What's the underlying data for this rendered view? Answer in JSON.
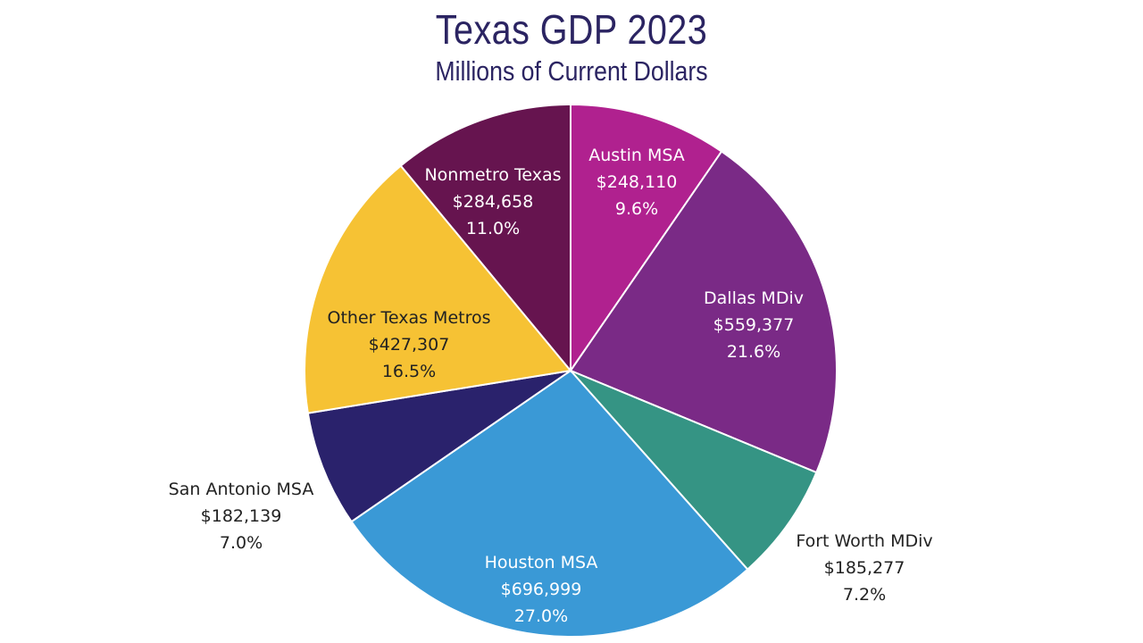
{
  "chart_data": {
    "type": "pie",
    "title": "Texas GDP 2023",
    "subtitle": "Millions of Current Dollars",
    "slices": [
      {
        "name": "Austin MSA",
        "value_label": "$248,110",
        "percent_label": "9.6%",
        "value": 248110,
        "percent": 9.6,
        "color": "#b0218f",
        "label_color": "#ffffff",
        "label_inside": true
      },
      {
        "name": "Dallas MDiv",
        "value_label": "$559,377",
        "percent_label": "21.6%",
        "value": 559377,
        "percent": 21.6,
        "color": "#7a2a86",
        "label_color": "#ffffff",
        "label_inside": true
      },
      {
        "name": "Fort Worth MDiv",
        "value_label": "$185,277",
        "percent_label": "7.2%",
        "value": 185277,
        "percent": 7.2,
        "color": "#359484",
        "label_color": "#222222",
        "label_inside": false
      },
      {
        "name": "Houston MSA",
        "value_label": "$696,999",
        "percent_label": "27.0%",
        "value": 696999,
        "percent": 27.0,
        "color": "#3a99d6",
        "label_color": "#ffffff",
        "label_inside": true
      },
      {
        "name": "San Antonio MSA",
        "value_label": "$182,139",
        "percent_label": "7.0%",
        "value": 182139,
        "percent": 7.0,
        "color": "#2a226c",
        "label_color": "#222222",
        "label_inside": false
      },
      {
        "name": "Other Texas Metros",
        "value_label": "$427,307",
        "percent_label": "16.5%",
        "value": 427307,
        "percent": 16.5,
        "color": "#f6c234",
        "label_color": "#222222",
        "label_inside": true
      },
      {
        "name": "Nonmetro Texas",
        "value_label": "$284,658",
        "percent_label": "11.0%",
        "value": 284658,
        "percent": 11.0,
        "color": "#66144f",
        "label_color": "#ffffff",
        "label_inside": true
      }
    ]
  }
}
